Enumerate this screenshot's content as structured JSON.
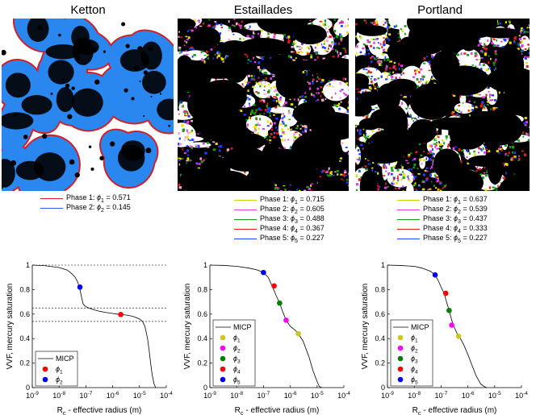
{
  "panels": [
    {
      "title": "Ketton",
      "image_colors": {
        "background": "#ffffff",
        "grain": "#2b87f0",
        "pore_dark": "#000000",
        "rim": "#d0202a"
      },
      "legend": [
        {
          "phase": "Phase 1: ",
          "sym": "ϕ",
          "sub": "1",
          "eq": " = 0.571",
          "color": "#d0202a"
        },
        {
          "phase": "Phase 2: ",
          "sym": "ϕ",
          "sub": "2",
          "eq": " = 0.145",
          "color": "#2b5cff"
        }
      ]
    },
    {
      "title": "Estaillades",
      "image_colors": {
        "background": "#000000",
        "light": "#ffffff",
        "mix": [
          "#e5e000",
          "#e040e0",
          "#14a014",
          "#e02020",
          "#2040ff",
          "#f7a6d0"
        ]
      },
      "legend": [
        {
          "phase": "Phase 1: ",
          "sym": "ϕ",
          "sub": "1",
          "eq": " = 0.715",
          "color": "#d6d000"
        },
        {
          "phase": "Phase 2: ",
          "sym": "ϕ",
          "sub": "2",
          "eq": " = 0.605",
          "color": "#e040e0"
        },
        {
          "phase": "Phase 3: ",
          "sym": "ϕ",
          "sub": "3",
          "eq": " = 0.488",
          "color": "#14a014"
        },
        {
          "phase": "Phase 4: ",
          "sym": "ϕ",
          "sub": "4",
          "eq": " = 0.367",
          "color": "#e02020"
        },
        {
          "phase": "Phase 5: ",
          "sym": "ϕ",
          "sub": "5",
          "eq": " = 0.227",
          "color": "#2040ff"
        }
      ]
    },
    {
      "title": "Portland",
      "image_colors": {
        "background": "#000000",
        "light": "#ffffff",
        "mix": [
          "#e5e000",
          "#e040e0",
          "#14a014",
          "#e02020",
          "#2040ff"
        ]
      },
      "legend": [
        {
          "phase": "Phase 1: ",
          "sym": "ϕ",
          "sub": "1",
          "eq": " = 0.637",
          "color": "#d6d000"
        },
        {
          "phase": "Phase 2: ",
          "sym": "ϕ",
          "sub": "2",
          "eq": " = 0.539",
          "color": "#e040e0"
        },
        {
          "phase": "Phase 3: ",
          "sym": "ϕ",
          "sub": "3",
          "eq": " = 0.437",
          "color": "#14a014"
        },
        {
          "phase": "Phase 4: ",
          "sym": "ϕ",
          "sub": "4",
          "eq": " = 0.333",
          "color": "#e02020"
        },
        {
          "phase": "Phase 5: ",
          "sym": "ϕ",
          "sub": "5",
          "eq": " = 0.227",
          "color": "#2040ff"
        }
      ]
    }
  ],
  "chart_data": [
    {
      "type": "line",
      "xlabel": "R",
      "xlabel_sub": "c",
      "xlabel_rest": " - effective radius (m)",
      "ylabel": "VVF, mercury saturation",
      "xscale": "log",
      "xlim_exp": [
        -9,
        -4
      ],
      "ylim": [
        0,
        1
      ],
      "x_ticks": [
        {
          "base": "10",
          "exp": "-9"
        },
        {
          "base": "10",
          "exp": "-8"
        },
        {
          "base": "10",
          "exp": "-7"
        },
        {
          "base": "10",
          "exp": "-6"
        },
        {
          "base": "10",
          "exp": "-5"
        },
        {
          "base": "10",
          "exp": "-4"
        }
      ],
      "y_ticks": [
        "0",
        "0.2",
        "0.4",
        "0.6",
        "0.8",
        "1"
      ],
      "hlines": [
        1.0,
        0.65,
        0.54
      ],
      "series": [
        {
          "name": "MICP",
          "x": [
            1e-09,
            3e-09,
            1e-08,
            2e-08,
            3e-08,
            4e-08,
            5e-08,
            6e-08,
            7e-08,
            8e-08,
            1e-07,
            1.5e-07,
            2e-07,
            3e-07,
            5e-07,
            7e-07,
            1e-06,
            1.5e-06,
            2e-06,
            3e-06,
            5e-06,
            7e-06,
            1e-05,
            1.3e-05,
            1.6e-05,
            2e-05,
            2.3e-05,
            2.6e-05,
            3e-05,
            3.5e-05,
            4e-05
          ],
          "y": [
            1.0,
            0.995,
            0.98,
            0.96,
            0.93,
            0.9,
            0.86,
            0.8,
            0.73,
            0.68,
            0.66,
            0.645,
            0.635,
            0.625,
            0.615,
            0.61,
            0.605,
            0.6,
            0.597,
            0.593,
            0.585,
            0.575,
            0.56,
            0.54,
            0.5,
            0.4,
            0.3,
            0.2,
            0.1,
            0.03,
            0.0
          ]
        }
      ],
      "points": [
        {
          "x": 2e-06,
          "y": 0.597,
          "color": "#ff0000"
        },
        {
          "x": 6e-08,
          "y": 0.82,
          "color": "#0000ff"
        }
      ],
      "legend": [
        {
          "kind": "line",
          "text": "MICP"
        },
        {
          "kind": "dot",
          "color": "#ff0000",
          "sym": "ϕ",
          "sub": "1"
        },
        {
          "kind": "dot",
          "color": "#0000ff",
          "sym": "ϕ",
          "sub": "2"
        }
      ]
    },
    {
      "type": "line",
      "xlabel": "R",
      "xlabel_sub": "c",
      "xlabel_rest": " - effective radius (m)",
      "ylabel": "VVF, mercury saturation",
      "xscale": "log",
      "xlim_exp": [
        -9,
        -4
      ],
      "ylim": [
        0,
        1
      ],
      "x_ticks": [
        {
          "base": "10",
          "exp": "-9"
        },
        {
          "base": "10",
          "exp": "-8"
        },
        {
          "base": "10",
          "exp": "-7"
        },
        {
          "base": "10",
          "exp": "-6"
        },
        {
          "base": "10",
          "exp": "-5"
        },
        {
          "base": "10",
          "exp": "-4"
        }
      ],
      "y_ticks": [
        "0",
        "0.2",
        "0.4",
        "0.6",
        "0.8",
        "1"
      ],
      "hlines": [],
      "series": [
        {
          "name": "MICP",
          "x": [
            1e-09,
            3e-09,
            1e-08,
            3e-08,
            6e-08,
            1e-07,
            1.5e-07,
            2e-07,
            3e-07,
            4e-07,
            5e-07,
            7e-07,
            1e-06,
            1.5e-06,
            2e-06,
            3e-06,
            5e-06,
            7e-06,
            1e-05,
            1.2e-05,
            1.5e-05
          ],
          "y": [
            1.0,
            0.998,
            0.99,
            0.975,
            0.96,
            0.94,
            0.9,
            0.84,
            0.75,
            0.69,
            0.63,
            0.55,
            0.5,
            0.47,
            0.44,
            0.38,
            0.25,
            0.14,
            0.05,
            0.01,
            0.0
          ]
        }
      ],
      "points": [
        {
          "x": 2e-06,
          "y": 0.44,
          "color": "#c8c820"
        },
        {
          "x": 7e-07,
          "y": 0.55,
          "color": "#ff00ff"
        },
        {
          "x": 4e-07,
          "y": 0.69,
          "color": "#008000"
        },
        {
          "x": 2.5e-07,
          "y": 0.83,
          "color": "#ff0000"
        },
        {
          "x": 1e-07,
          "y": 0.94,
          "color": "#0000ff"
        }
      ],
      "legend": [
        {
          "kind": "line",
          "text": "MICP"
        },
        {
          "kind": "dot",
          "color": "#c8c820",
          "sym": "ϕ",
          "sub": "1"
        },
        {
          "kind": "dot",
          "color": "#ff00ff",
          "sym": "ϕ",
          "sub": "2"
        },
        {
          "kind": "dot",
          "color": "#008000",
          "sym": "ϕ",
          "sub": "3"
        },
        {
          "kind": "dot",
          "color": "#ff0000",
          "sym": "ϕ",
          "sub": "4"
        },
        {
          "kind": "dot",
          "color": "#0000ff",
          "sym": "ϕ",
          "sub": "5"
        }
      ]
    },
    {
      "type": "line",
      "xlabel": "R",
      "xlabel_sub": "c",
      "xlabel_rest": " - effective radius (m)",
      "ylabel": "VVF, mercury saturation",
      "xscale": "log",
      "xlim_exp": [
        -9,
        -4
      ],
      "ylim": [
        0,
        1
      ],
      "x_ticks": [
        {
          "base": "10",
          "exp": "-9"
        },
        {
          "base": "10",
          "exp": "-8"
        },
        {
          "base": "10",
          "exp": "-7"
        },
        {
          "base": "10",
          "exp": "-6"
        },
        {
          "base": "10",
          "exp": "-5"
        },
        {
          "base": "10",
          "exp": "-4"
        }
      ],
      "y_ticks": [
        "0",
        "0.2",
        "0.4",
        "0.6",
        "0.8",
        "1"
      ],
      "hlines": [],
      "series": [
        {
          "name": "MICP",
          "x": [
            1e-09,
            3e-09,
            1e-08,
            2e-08,
            4e-08,
            6e-08,
            8e-08,
            1e-07,
            1.3e-07,
            1.6e-07,
            2e-07,
            2.5e-07,
            3e-07,
            4e-07,
            5e-07,
            7e-07,
            1e-06,
            1.5e-06,
            2e-06,
            3e-06,
            4e-06,
            5e-06
          ],
          "y": [
            1.0,
            0.997,
            0.99,
            0.975,
            0.95,
            0.92,
            0.87,
            0.82,
            0.77,
            0.7,
            0.63,
            0.55,
            0.5,
            0.44,
            0.41,
            0.35,
            0.27,
            0.17,
            0.1,
            0.03,
            0.01,
            0.0
          ]
        }
      ],
      "points": [
        {
          "x": 4.5e-07,
          "y": 0.42,
          "color": "#c8c820"
        },
        {
          "x": 2.5e-07,
          "y": 0.51,
          "color": "#ff00ff"
        },
        {
          "x": 2e-07,
          "y": 0.63,
          "color": "#008000"
        },
        {
          "x": 1.5e-07,
          "y": 0.77,
          "color": "#ff0000"
        },
        {
          "x": 6e-08,
          "y": 0.92,
          "color": "#0000ff"
        }
      ],
      "legend": [
        {
          "kind": "line",
          "text": "MICP"
        },
        {
          "kind": "dot",
          "color": "#c8c820",
          "sym": "ϕ",
          "sub": "1"
        },
        {
          "kind": "dot",
          "color": "#ff00ff",
          "sym": "ϕ",
          "sub": "2"
        },
        {
          "kind": "dot",
          "color": "#008000",
          "sym": "ϕ",
          "sub": "3"
        },
        {
          "kind": "dot",
          "color": "#ff0000",
          "sym": "ϕ",
          "sub": "4"
        },
        {
          "kind": "dot",
          "color": "#0000ff",
          "sym": "ϕ",
          "sub": "5"
        }
      ]
    }
  ]
}
